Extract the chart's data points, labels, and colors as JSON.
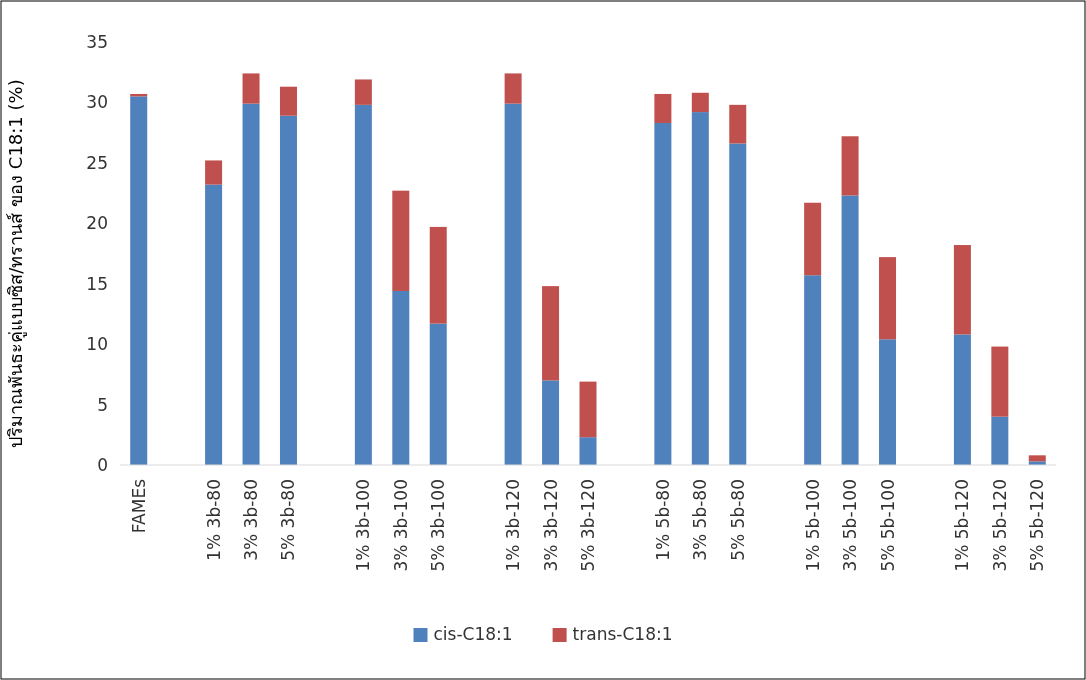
{
  "chart_data": {
    "type": "bar",
    "stacked": true,
    "ylabel": "ปริมาณพันธะคู่แบบซิส/ทรานส์ ของ C18:1 (%)",
    "categories": [
      "FAMEs",
      null,
      "1% 3b-80",
      "3% 3b-80",
      "5% 3b-80",
      null,
      "1% 3b-100",
      "3% 3b-100",
      "5% 3b-100",
      null,
      "1% 3b-120",
      "3% 3b-120",
      "5% 3b-120",
      null,
      "1% 5b-80",
      "3% 5b-80",
      "5% 5b-80",
      null,
      "1% 5b-100",
      "3% 5b-100",
      "5% 5b-100",
      null,
      "1% 5b-120",
      "3% 5b-120",
      "5% 5b-120"
    ],
    "series": [
      {
        "name": "cis-C18:1",
        "color": "#4f81bd",
        "values": [
          30.5,
          null,
          23.2,
          29.9,
          28.9,
          null,
          29.8,
          14.4,
          11.7,
          null,
          29.9,
          7.0,
          2.3,
          null,
          28.3,
          29.2,
          26.6,
          null,
          15.7,
          22.3,
          10.4,
          null,
          10.8,
          4.0,
          0.3
        ]
      },
      {
        "name": "trans-C18:1",
        "color": "#c0504d",
        "values": [
          0.2,
          null,
          2.0,
          2.5,
          2.4,
          null,
          2.1,
          8.3,
          8.0,
          null,
          2.5,
          7.8,
          4.6,
          null,
          2.4,
          1.6,
          3.2,
          null,
          6.0,
          4.9,
          6.8,
          null,
          7.4,
          5.8,
          0.5
        ]
      }
    ],
    "ylim": [
      0,
      35
    ],
    "yticks": [
      0,
      5,
      10,
      15,
      20,
      25,
      30,
      35
    ],
    "legend": "bottom"
  }
}
